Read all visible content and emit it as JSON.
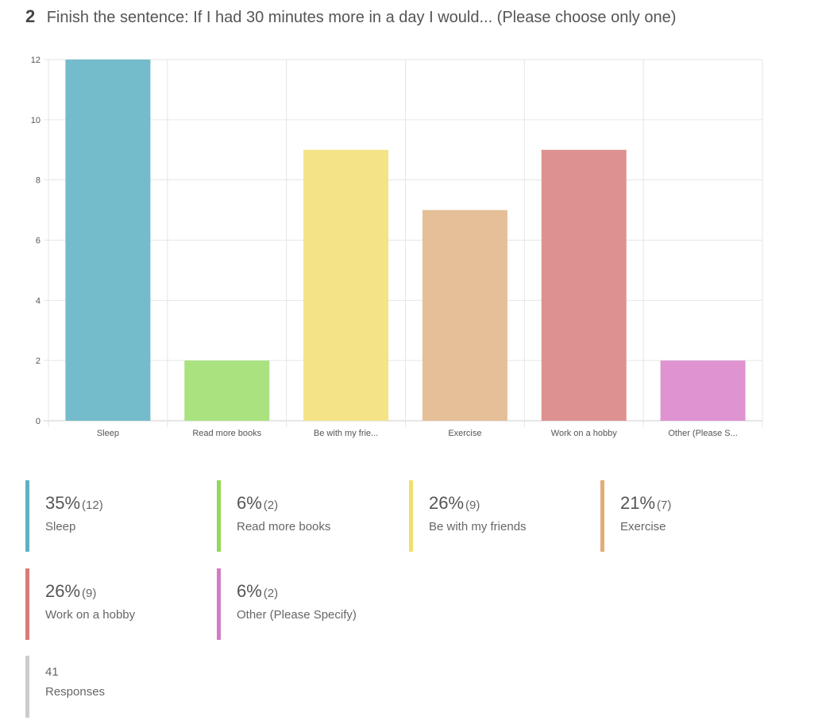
{
  "question": {
    "number": "2",
    "text": "Finish the sentence: If I had 30 minutes more in a day I would... (Please choose only one)"
  },
  "chart_data": {
    "type": "bar",
    "categories": [
      "Sleep",
      "Read more books",
      "Be with my frie...",
      "Exercise",
      "Work on a hobby",
      "Other (Please S..."
    ],
    "values": [
      12,
      2,
      9,
      7,
      9,
      2
    ],
    "colors": [
      "#74bccb",
      "#a9e27f",
      "#f5e387",
      "#e5bf97",
      "#de928f",
      "#df93d1"
    ],
    "ylim": [
      0,
      12
    ],
    "yticks": [
      0,
      2,
      4,
      6,
      8,
      10,
      12
    ],
    "grid": true,
    "title": "",
    "xlabel": "",
    "ylabel": ""
  },
  "legend": [
    {
      "percent": "35%",
      "count": "(12)",
      "label": "Sleep",
      "color": "#5fb0c2"
    },
    {
      "percent": "6%",
      "count": "(2)",
      "label": "Read more books",
      "color": "#92d957"
    },
    {
      "percent": "26%",
      "count": "(9)",
      "label": "Be with my friends",
      "color": "#f2de6c"
    },
    {
      "percent": "21%",
      "count": "(7)",
      "label": "Exercise",
      "color": "#e2ad76"
    },
    {
      "percent": "26%",
      "count": "(9)",
      "label": "Work on a hobby",
      "color": "#d97b77"
    },
    {
      "percent": "6%",
      "count": "(2)",
      "label": "Other (Please Specify)",
      "color": "#d47cc3"
    }
  ],
  "responses": {
    "count": "41",
    "label": "Responses"
  }
}
